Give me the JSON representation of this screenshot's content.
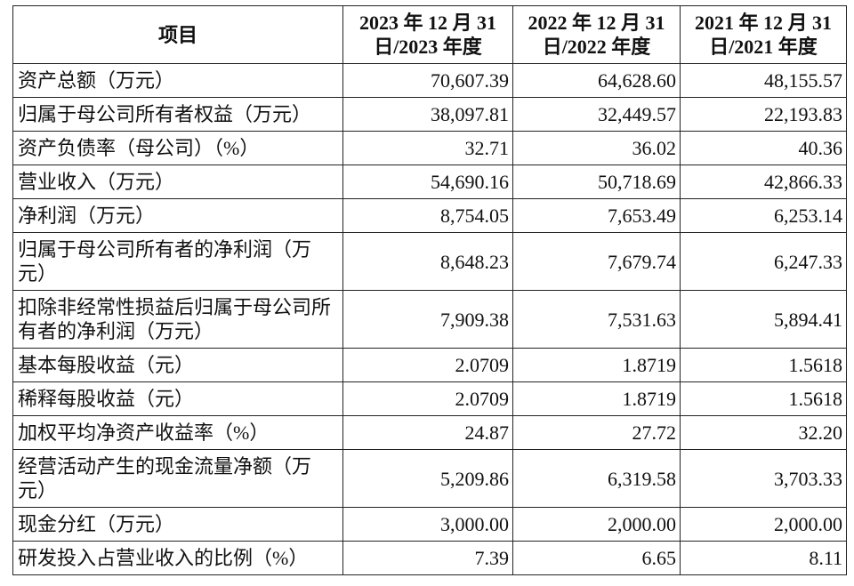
{
  "table": {
    "header": [
      "项目",
      "2023 年 12 月 31 日/2023 年度",
      "2022 年 12 月 31 日/2022 年度",
      "2021 年 12 月 31 日/2021 年度"
    ],
    "rows": [
      [
        "资产总额（万元）",
        "70,607.39",
        "64,628.60",
        "48,155.57"
      ],
      [
        "归属于母公司所有者权益（万元）",
        "38,097.81",
        "32,449.57",
        "22,193.83"
      ],
      [
        "资产负债率（母公司）（%）",
        "32.71",
        "36.02",
        "40.36"
      ],
      [
        "营业收入（万元）",
        "54,690.16",
        "50,718.69",
        "42,866.33"
      ],
      [
        "净利润（万元）",
        "8,754.05",
        "7,653.49",
        "6,253.14"
      ],
      [
        "归属于母公司所有者的净利润（万元）",
        "8,648.23",
        "7,679.74",
        "6,247.33"
      ],
      [
        "扣除非经常性损益后归属于母公司所有者的净利润（万元）",
        "7,909.38",
        "7,531.63",
        "5,894.41"
      ],
      [
        "基本每股收益（元）",
        "2.0709",
        "1.8719",
        "1.5618"
      ],
      [
        "稀释每股收益（元）",
        "2.0709",
        "1.8719",
        "1.5618"
      ],
      [
        "加权平均净资产收益率（%）",
        "24.87",
        "27.72",
        "32.20"
      ],
      [
        "经营活动产生的现金流量净额（万元）",
        "5,209.86",
        "6,319.58",
        "3,703.33"
      ],
      [
        "现金分红（万元）",
        "3,000.00",
        "2,000.00",
        "2,000.00"
      ],
      [
        "研发投入占营业收入的比例（%）",
        "7.39",
        "6.65",
        "8.11"
      ]
    ]
  }
}
